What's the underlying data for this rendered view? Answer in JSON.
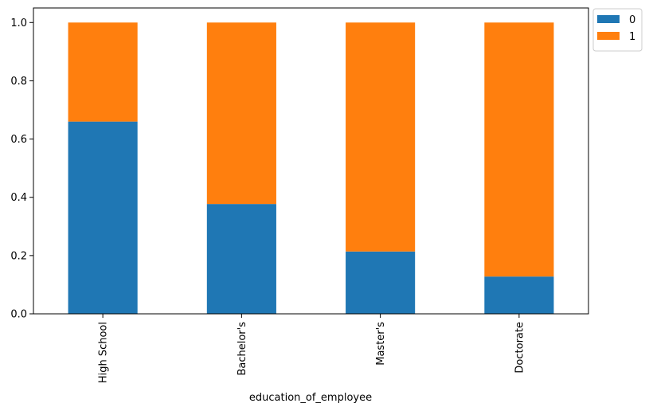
{
  "chart_data": {
    "type": "bar",
    "stacked": true,
    "categories": [
      "High School",
      "Bachelor's",
      "Master's",
      "Doctorate"
    ],
    "series": [
      {
        "name": "0",
        "color": "#1f77b4",
        "values": [
          0.66,
          0.377,
          0.214,
          0.128
        ]
      },
      {
        "name": "1",
        "color": "#ff7f0e",
        "values": [
          0.34,
          0.623,
          0.786,
          0.872
        ]
      }
    ],
    "xlabel": "education_of_employee",
    "ylabel": "",
    "ylim": [
      0,
      1.05
    ],
    "yticks": [
      "0.0",
      "0.2",
      "0.4",
      "0.6",
      "0.8",
      "1.0"
    ],
    "grid": false,
    "legend_position": "outside top-right"
  }
}
